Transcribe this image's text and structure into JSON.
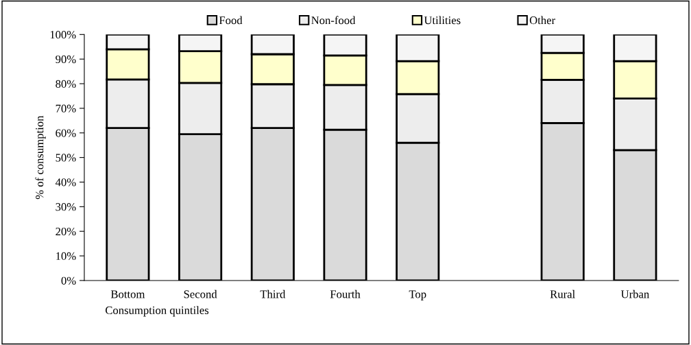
{
  "chart_data": {
    "type": "bar",
    "stacked": true,
    "xlabel": "Consumption quintiles",
    "ylabel": "% of consumption",
    "categories": [
      "Bottom",
      "Second",
      "Third",
      "Fourth",
      "Top",
      null,
      "Rural",
      "Urban"
    ],
    "series": [
      {
        "name": "Food",
        "color": "#dadada",
        "values": [
          62,
          59.5,
          62,
          61.3,
          56,
          null,
          64,
          53
        ]
      },
      {
        "name": "Non-food",
        "color": "#ededed",
        "values": [
          19.7,
          20.8,
          17.8,
          18.2,
          19.8,
          null,
          17.6,
          21
        ]
      },
      {
        "name": "Utilities",
        "color": "#ffffcc",
        "values": [
          12.3,
          12.9,
          12.2,
          12,
          13.4,
          null,
          10.9,
          15.2
        ]
      },
      {
        "name": "Other",
        "color": "#f5f5f5",
        "values": [
          6,
          6.8,
          8,
          8.5,
          10.8,
          null,
          7.5,
          10.8
        ]
      }
    ],
    "ylim": [
      0,
      100
    ],
    "yticks": [
      {
        "value": 0,
        "label": "0%"
      },
      {
        "value": 10,
        "label": "10%"
      },
      {
        "value": 20,
        "label": "20%"
      },
      {
        "value": 30,
        "label": "30%"
      },
      {
        "value": 40,
        "label": "40%"
      },
      {
        "value": 50,
        "label": "50%"
      },
      {
        "value": 60,
        "label": "60%"
      },
      {
        "value": 70,
        "label": "70%"
      },
      {
        "value": 80,
        "label": "80%"
      },
      {
        "value": 90,
        "label": "90%"
      },
      {
        "value": 100,
        "label": "100%"
      }
    ],
    "grid": false,
    "legend": "top"
  }
}
